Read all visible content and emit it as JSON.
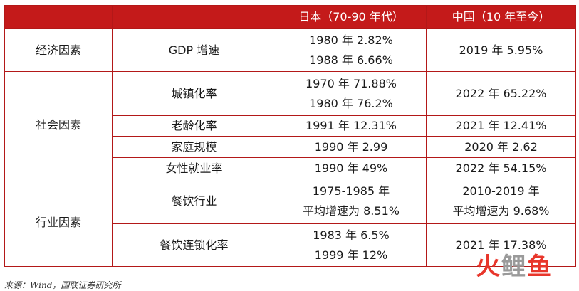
{
  "header": {
    "col1": "",
    "col2": "",
    "col3": "日本（70-90 年代）",
    "col4": "中国（10 年至今）"
  },
  "groups": [
    {
      "category": "经济因素",
      "rows": [
        {
          "indicator": "GDP 增速",
          "japan": [
            "1980 年 2.82%",
            "1988 年 6.66%"
          ],
          "china": [
            "2019 年 5.95%"
          ]
        }
      ]
    },
    {
      "category": "社会因素",
      "rows": [
        {
          "indicator": "城镇化率",
          "japan": [
            "1970 年 71.88%",
            "1980 年 76.2%"
          ],
          "china": [
            "2022 年 65.22%"
          ]
        },
        {
          "indicator": "老龄化率",
          "japan": [
            "1991 年 12.31%"
          ],
          "china": [
            "2021 年 12.41%"
          ]
        },
        {
          "indicator": "家庭规模",
          "japan": [
            "1990 年 2.99"
          ],
          "china": [
            "2020 年 2.62"
          ]
        },
        {
          "indicator": "女性就业率",
          "japan": [
            "1990 年 49%"
          ],
          "china": [
            "2022 年 54.15%"
          ]
        }
      ]
    },
    {
      "category": "行业因素",
      "rows": [
        {
          "indicator": "餐饮行业",
          "japan": [
            "1975-1985 年",
            "平均增速为 8.51%"
          ],
          "china": [
            "2010-2019 年",
            "平均增速为 9.68%"
          ]
        },
        {
          "indicator": "餐饮连锁化率",
          "japan": [
            "1983 年 6.5%",
            "1999 年 12%"
          ],
          "china": [
            "2021 年 17.38%"
          ]
        }
      ]
    }
  ],
  "source": "来源：Wind，国联证券研究所",
  "watermark": {
    "char1": "火",
    "char2": "鲤",
    "char3": "鱼",
    "color_red": "#e8362b",
    "color_gray": "#9a9a9a"
  },
  "colors": {
    "header_bg": "#c41a1a",
    "border": "#b31818"
  }
}
